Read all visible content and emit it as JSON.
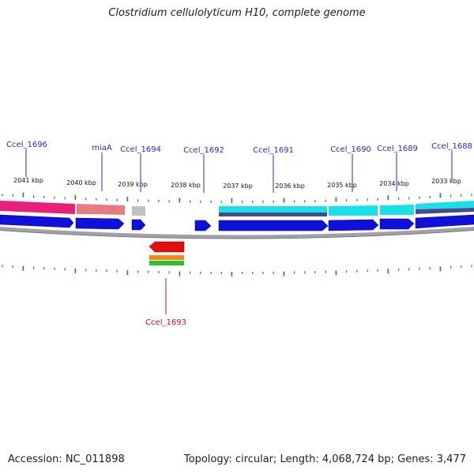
{
  "title": "Clostridium cellulolyticum H10, complete genome",
  "footer": {
    "accession": "Accession: NC_011898",
    "stats": "Topology: circular; Length: 4,068,724 bp; Genes: 3,477"
  },
  "colors": {
    "forward_cds": "#1010dd",
    "backbone": "#a0a0a8",
    "reverse_cds": "#e01010",
    "tick": "#1e8a1e",
    "label_blue": "#1f2fc8",
    "label_red": "#d01010",
    "magenta_track": "#e8207a",
    "salmon_track": "#e87a84",
    "cyan_track": "#18e0e8",
    "grey_track": "#c0c0c4",
    "orange_track": "#f08a10",
    "green_track": "#30c030"
  },
  "scale_labels": [
    {
      "text": "2041 kbp"
    },
    {
      "text": "2040 kbp"
    },
    {
      "text": "2039 kbp"
    },
    {
      "text": "2038 kbp"
    },
    {
      "text": "2037 kbp"
    },
    {
      "text": "2036 kbp"
    },
    {
      "text": "2035 kbp"
    },
    {
      "text": "2034 kbp"
    },
    {
      "text": "2033 kbp"
    }
  ],
  "gene_labels_forward": [
    {
      "name": "Ccel_1696"
    },
    {
      "name": "miaA"
    },
    {
      "name": "Ccel_1694"
    },
    {
      "name": "Ccel_1692"
    },
    {
      "name": "Ccel_1691"
    },
    {
      "name": "Ccel_1690"
    },
    {
      "name": "Ccel_1689"
    },
    {
      "name": "Ccel_1688"
    }
  ],
  "gene_labels_reverse": [
    {
      "name": "Ccel_1693"
    }
  ]
}
